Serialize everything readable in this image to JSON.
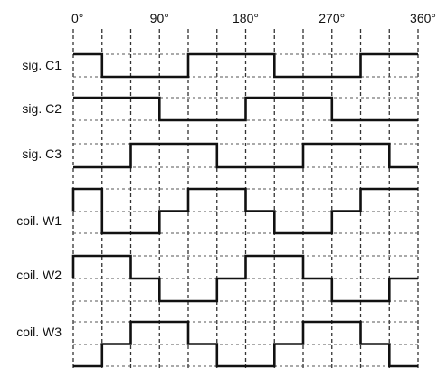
{
  "degree_labels": [
    "0°",
    "90°",
    "180°",
    "270°",
    "360°"
  ],
  "chart_data": {
    "type": "line",
    "x_unit": "degrees",
    "xlim": [
      0,
      360
    ],
    "x_ticks": [
      0,
      90,
      180,
      270,
      360
    ],
    "series": [
      {
        "name": "sig. C1",
        "transitions": [
          [
            0,
            1
          ],
          [
            30,
            0
          ],
          [
            120,
            1
          ],
          [
            210,
            0
          ],
          [
            300,
            1
          ],
          [
            360,
            1
          ]
        ]
      },
      {
        "name": "sig. C2",
        "transitions": [
          [
            0,
            1
          ],
          [
            90,
            0
          ],
          [
            180,
            1
          ],
          [
            270,
            0
          ],
          [
            360,
            0
          ]
        ]
      },
      {
        "name": "sig. C3",
        "transitions": [
          [
            0,
            0
          ],
          [
            60,
            1
          ],
          [
            150,
            0
          ],
          [
            240,
            1
          ],
          [
            330,
            0
          ],
          [
            360,
            0
          ]
        ]
      },
      {
        "name": "coil. W1",
        "levels": [
          1,
          0,
          0,
          0.5,
          1,
          1,
          0.5,
          0,
          0,
          0.5,
          1,
          1
        ],
        "start_edge_from": 0.5
      },
      {
        "name": "coil. W2",
        "levels": [
          1,
          1,
          0.5,
          0,
          0,
          0.5,
          1,
          1,
          0.5,
          0,
          0,
          0.5
        ],
        "start_edge_from": 0.5
      },
      {
        "name": "coil. W3",
        "levels": [
          0,
          0.5,
          1,
          1,
          0.5,
          0,
          0,
          0.5,
          1,
          1,
          0.5,
          0
        ]
      }
    ],
    "grid": true
  }
}
